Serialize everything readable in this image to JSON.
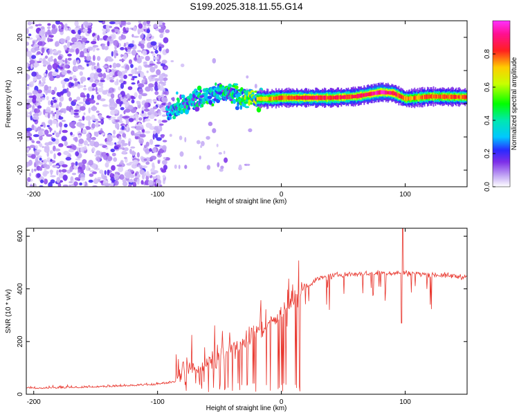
{
  "title": "S199.2025.318.11.55.G14",
  "colors": {
    "snr_line": "#e8342b",
    "spectrum_strong": "#e8342b",
    "spectrum_mid": "#22d0f0",
    "spectrum_low": "#6a1fe0",
    "spectrum_faint": "#cdb6f5"
  },
  "chart_data": [
    {
      "type": "heatmap",
      "name": "spectrogram",
      "xlabel": "Height of straight line (km)",
      "ylabel": "Frequency (Hz)",
      "xlim": [
        -206,
        150
      ],
      "ylim": [
        -25,
        25
      ],
      "x_ticks": [
        {
          "value": -200,
          "label": "-200"
        },
        {
          "value": -100,
          "label": "-100"
        },
        {
          "value": 0,
          "label": "0"
        },
        {
          "value": 100,
          "label": "100"
        }
      ],
      "y_ticks": [
        {
          "value": 20,
          "label": "20"
        },
        {
          "value": 10,
          "label": "10"
        },
        {
          "value": 0,
          "label": "0"
        },
        {
          "value": -10,
          "label": "-10"
        },
        {
          "value": -20,
          "label": "-20"
        }
      ],
      "colorbar": {
        "label": "Normalized spectral amplitude",
        "range": [
          0,
          1
        ],
        "ticks": [
          {
            "value": 0.0,
            "label": "0.0"
          },
          {
            "value": 0.2,
            "label": "0.2"
          },
          {
            "value": 0.4,
            "label": "0.4"
          },
          {
            "value": 0.6,
            "label": "0.6"
          },
          {
            "value": 0.8,
            "label": "0.8"
          }
        ]
      },
      "noise_region_x": [
        -206,
        -92
      ],
      "signal_track": [
        {
          "x": -92,
          "freq": -2,
          "amp": 0.35
        },
        {
          "x": -85,
          "freq": -1,
          "amp": 0.45
        },
        {
          "x": -78,
          "freq": 0,
          "amp": 0.5
        },
        {
          "x": -70,
          "freq": 1,
          "amp": 0.45
        },
        {
          "x": -60,
          "freq": 2,
          "amp": 0.55
        },
        {
          "x": -50,
          "freq": 4,
          "amp": 0.5
        },
        {
          "x": -40,
          "freq": 3,
          "amp": 0.55
        },
        {
          "x": -30,
          "freq": 2,
          "amp": 0.6
        },
        {
          "x": -20,
          "freq": 1.5,
          "amp": 0.75
        },
        {
          "x": -10,
          "freq": 1.5,
          "amp": 0.8
        },
        {
          "x": 0,
          "freq": 1.8,
          "amp": 0.85
        },
        {
          "x": 20,
          "freq": 1.8,
          "amp": 0.95
        },
        {
          "x": 40,
          "freq": 1.8,
          "amp": 0.9
        },
        {
          "x": 60,
          "freq": 2.2,
          "amp": 0.9
        },
        {
          "x": 80,
          "freq": 3.5,
          "amp": 1.0
        },
        {
          "x": 90,
          "freq": 3.2,
          "amp": 0.95
        },
        {
          "x": 100,
          "freq": 1.5,
          "amp": 0.8
        },
        {
          "x": 120,
          "freq": 2.2,
          "amp": 0.85
        },
        {
          "x": 150,
          "freq": 2.0,
          "amp": 0.85
        }
      ]
    },
    {
      "type": "line",
      "name": "snr",
      "xlabel": "Height of straight line (km)",
      "ylabel": "SNR (10 * v/v)",
      "xlim": [
        -206,
        150
      ],
      "ylim": [
        0,
        630
      ],
      "x_ticks": [
        {
          "value": -200,
          "label": "-200"
        },
        {
          "value": -100,
          "label": "-100"
        },
        {
          "value": 0,
          "label": "0"
        },
        {
          "value": 100,
          "label": "100"
        }
      ],
      "y_ticks": [
        {
          "value": 0,
          "label": "0"
        },
        {
          "value": 200,
          "label": "200"
        },
        {
          "value": 400,
          "label": "400"
        },
        {
          "value": 600,
          "label": "600"
        }
      ],
      "trend": [
        {
          "x": -206,
          "y": 20
        },
        {
          "x": -150,
          "y": 25
        },
        {
          "x": -100,
          "y": 35
        },
        {
          "x": -85,
          "y": 45
        },
        {
          "x": -80,
          "y": 90
        },
        {
          "x": -70,
          "y": 100
        },
        {
          "x": -60,
          "y": 115
        },
        {
          "x": -50,
          "y": 150
        },
        {
          "x": -40,
          "y": 175
        },
        {
          "x": -30,
          "y": 200
        },
        {
          "x": -20,
          "y": 230
        },
        {
          "x": -10,
          "y": 265
        },
        {
          "x": 0,
          "y": 310
        },
        {
          "x": 10,
          "y": 360
        },
        {
          "x": 20,
          "y": 410
        },
        {
          "x": 30,
          "y": 440
        },
        {
          "x": 50,
          "y": 455
        },
        {
          "x": 80,
          "y": 460
        },
        {
          "x": 100,
          "y": 460
        },
        {
          "x": 120,
          "y": 455
        },
        {
          "x": 150,
          "y": 445
        }
      ],
      "peak": {
        "x": 98,
        "y": 630
      },
      "dip": {
        "x": 97,
        "y": 270
      }
    }
  ]
}
